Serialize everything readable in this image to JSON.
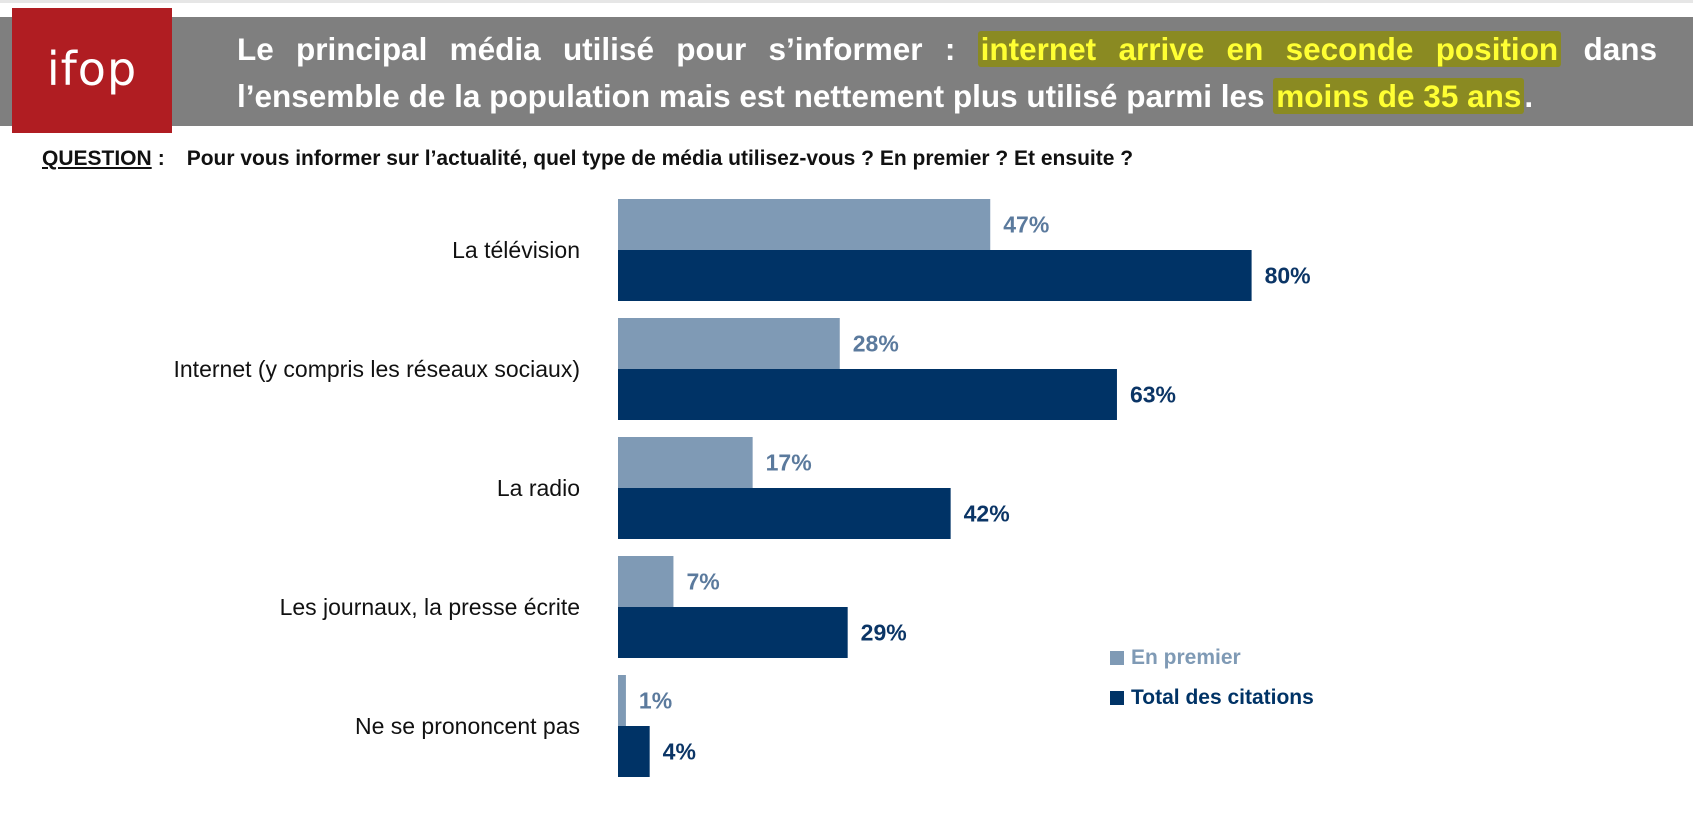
{
  "header": {
    "logo_text": "ifop",
    "title_part1": "Le principal média utilisé pour s’informer : ",
    "title_highlight1": "internet arrive en seconde position",
    "title_part2": " dans l’ensemble de la population mais est nettement plus utilisé parmi les ",
    "title_highlight2": "moins de 35 ans",
    "title_part3": ".",
    "band_color": "#7f7f7f",
    "logo_color": "#b01d22",
    "highlight_color": "#ffff00"
  },
  "question": {
    "label": "QUESTION",
    "separator": ":",
    "text": "Pour vous informer sur l’actualité, quel type de média utilisez-vous ? En premier ? Et ensuite ?"
  },
  "chart_data": {
    "type": "bar",
    "orientation": "horizontal",
    "categories": [
      "La télévision",
      "Internet (y compris les réseaux sociaux)",
      "La radio",
      "Les journaux, la presse écrite",
      "Ne se prononcent pas"
    ],
    "series": [
      {
        "name": "En premier",
        "values": [
          47,
          28,
          17,
          7,
          1
        ],
        "labels": [
          "47%",
          "28%",
          "17%",
          "7%",
          "1%"
        ],
        "color": "#7f9ab5"
      },
      {
        "name": "Total des citations",
        "values": [
          80,
          63,
          42,
          29,
          4
        ],
        "labels": [
          "80%",
          "63%",
          "42%",
          "29%",
          "4%"
        ],
        "color": "#003366"
      }
    ],
    "unit": "%",
    "xlim": [
      0,
      100
    ],
    "grid": false,
    "legend_position": "bottom-right"
  }
}
